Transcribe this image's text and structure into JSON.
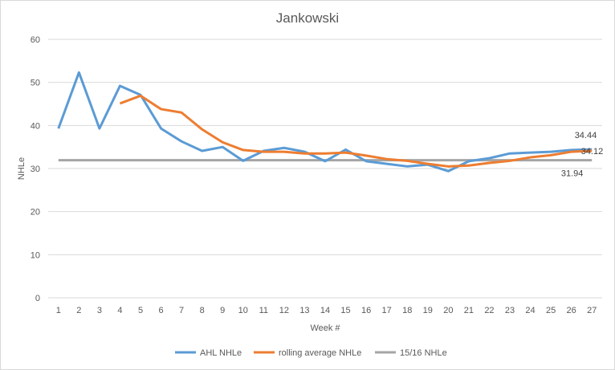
{
  "chart_data": {
    "type": "line",
    "title": "Jankowski",
    "xlabel": "Week #",
    "ylabel": "NHLe",
    "ylim": [
      0,
      60
    ],
    "yticks": [
      0,
      10,
      20,
      30,
      40,
      50,
      60
    ],
    "grid": true,
    "legend": "bottom",
    "x": [
      1,
      2,
      3,
      4,
      5,
      6,
      7,
      8,
      9,
      10,
      11,
      12,
      13,
      14,
      15,
      16,
      17,
      18,
      19,
      20,
      21,
      22,
      23,
      24,
      25,
      26,
      27
    ],
    "series": [
      {
        "name": "AHL NHLe",
        "color": "#5b9bd5",
        "values": [
          39.3,
          52.3,
          39.3,
          49.2,
          47.1,
          39.3,
          36.3,
          34.1,
          35.0,
          31.8,
          34.1,
          34.8,
          33.9,
          31.7,
          34.4,
          31.7,
          31.1,
          30.5,
          30.9,
          29.4,
          31.7,
          32.4,
          33.5,
          33.7,
          33.9,
          34.3,
          34.44
        ],
        "end_label": "34.44"
      },
      {
        "name": "rolling average NHLe",
        "color": "#ed7d31",
        "values": [
          null,
          null,
          null,
          45.1,
          46.9,
          43.8,
          43.0,
          39.1,
          36.1,
          34.3,
          33.9,
          33.9,
          33.5,
          33.5,
          33.7,
          33.0,
          32.2,
          31.8,
          31.1,
          30.5,
          30.7,
          31.3,
          31.8,
          32.6,
          33.1,
          33.9,
          34.12
        ],
        "end_label": "34.12"
      },
      {
        "name": "15/16 NHLe",
        "color": "#a5a5a5",
        "values": [
          31.94,
          31.94,
          31.94,
          31.94,
          31.94,
          31.94,
          31.94,
          31.94,
          31.94,
          31.94,
          31.94,
          31.94,
          31.94,
          31.94,
          31.94,
          31.94,
          31.94,
          31.94,
          31.94,
          31.94,
          31.94,
          31.94,
          31.94,
          31.94,
          31.94,
          31.94,
          31.94
        ],
        "end_label": "31.94"
      }
    ]
  }
}
